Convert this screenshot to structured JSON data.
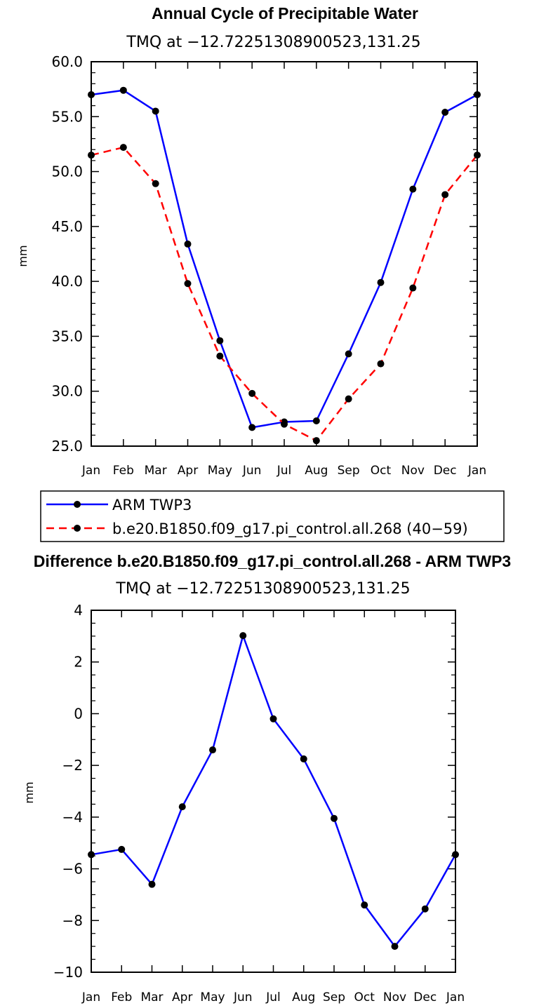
{
  "chart_data": [
    {
      "type": "line",
      "title": "Annual Cycle of Precipitable Water",
      "subtitle": "TMQ at −12.72251308900523,131.25",
      "ylabel": "mm",
      "ylim": [
        25,
        60
      ],
      "yticks": [
        "25.0",
        "30.0",
        "35.0",
        "40.0",
        "45.0",
        "50.0",
        "55.0",
        "60.0"
      ],
      "categories": [
        "Jan",
        "Feb",
        "Mar",
        "Apr",
        "May",
        "Jun",
        "Jul",
        "Aug",
        "Sep",
        "Oct",
        "Nov",
        "Dec",
        "Jan"
      ],
      "legend_position": "below",
      "series": [
        {
          "name": "ARM TWP3",
          "color": "#0000ff",
          "dash": "solid",
          "values": [
            57.0,
            57.4,
            55.5,
            43.4,
            34.6,
            26.7,
            27.2,
            27.3,
            33.4,
            39.9,
            48.4,
            55.4,
            57.0
          ]
        },
        {
          "name": "b.e20.B1850.f09_g17.pi_control.all.268 (40−59)",
          "color": "#ff0000",
          "dash": "dashed",
          "values": [
            51.5,
            52.2,
            48.9,
            39.8,
            33.2,
            29.8,
            27.0,
            25.5,
            29.3,
            32.5,
            39.4,
            47.9,
            51.5
          ]
        }
      ]
    },
    {
      "type": "line",
      "title": "Difference b.e20.B1850.f09_g17.pi_control.all.268 - ARM TWP3",
      "subtitle": "TMQ at −12.72251308900523,131.25",
      "ylabel": "mm",
      "ylim": [
        -10,
        4
      ],
      "yticks": [
        "−10",
        "−8",
        "−6",
        "−4",
        "−2",
        "0",
        "2",
        "4"
      ],
      "categories": [
        "Jan",
        "Feb",
        "Mar",
        "Apr",
        "May",
        "Jun",
        "Jul",
        "Aug",
        "Sep",
        "Oct",
        "Nov",
        "Dec",
        "Jan"
      ],
      "series": [
        {
          "color": "#0000ff",
          "dash": "solid",
          "values": [
            -5.45,
            -5.25,
            -6.6,
            -3.6,
            -1.4,
            3.02,
            -0.2,
            -1.75,
            -4.05,
            -7.4,
            -9.0,
            -7.55,
            -5.45
          ]
        }
      ]
    }
  ]
}
